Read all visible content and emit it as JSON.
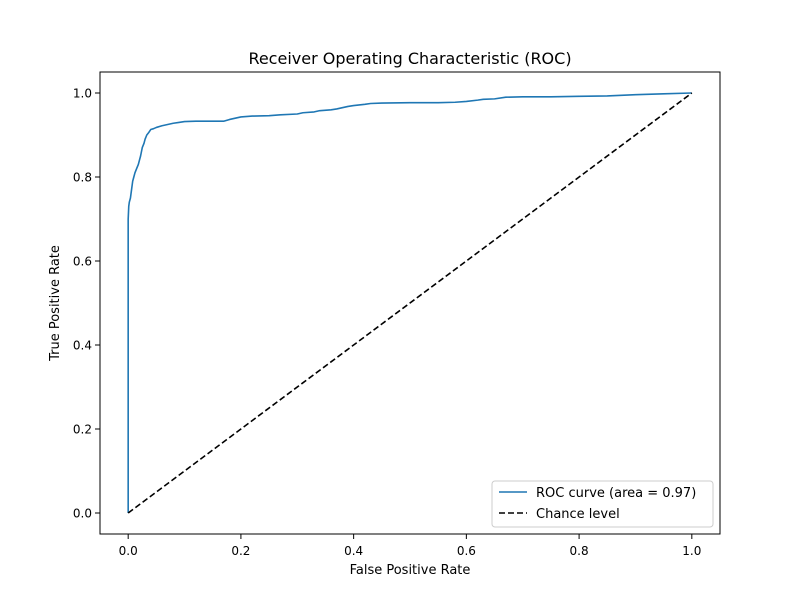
{
  "chart_data": {
    "type": "line",
    "title": "Receiver Operating Characteristic (ROC)",
    "xlabel": "False Positive Rate",
    "ylabel": "True Positive Rate",
    "xlim": [
      -0.05,
      1.05
    ],
    "ylim": [
      -0.05,
      1.05
    ],
    "xticks": [
      0.0,
      0.2,
      0.4,
      0.6,
      0.8,
      1.0
    ],
    "yticks": [
      0.0,
      0.2,
      0.4,
      0.6,
      0.8,
      1.0
    ],
    "xtick_labels": [
      "0.0",
      "0.2",
      "0.4",
      "0.6",
      "0.8",
      "1.0"
    ],
    "ytick_labels": [
      "0.0",
      "0.2",
      "0.4",
      "0.6",
      "0.8",
      "1.0"
    ],
    "grid": false,
    "legend_position": "lower-right",
    "series": [
      {
        "name": "ROC curve (area = 0.97)",
        "color": "#1f77b4",
        "style": "solid",
        "x": [
          0.0,
          0.0,
          0.0,
          0.001,
          0.002,
          0.004,
          0.006,
          0.008,
          0.01,
          0.012,
          0.015,
          0.018,
          0.02,
          0.022,
          0.025,
          0.028,
          0.03,
          0.033,
          0.036,
          0.04,
          0.045,
          0.05,
          0.06,
          0.07,
          0.08,
          0.09,
          0.1,
          0.12,
          0.14,
          0.17,
          0.18,
          0.19,
          0.2,
          0.22,
          0.25,
          0.27,
          0.3,
          0.31,
          0.33,
          0.34,
          0.36,
          0.37,
          0.38,
          0.39,
          0.4,
          0.42,
          0.43,
          0.45,
          0.5,
          0.55,
          0.58,
          0.6,
          0.62,
          0.63,
          0.65,
          0.67,
          0.7,
          0.75,
          0.8,
          0.85,
          0.9,
          0.95,
          1.0
        ],
        "y": [
          0.0,
          0.4,
          0.7,
          0.73,
          0.74,
          0.75,
          0.77,
          0.79,
          0.8,
          0.81,
          0.82,
          0.83,
          0.84,
          0.85,
          0.87,
          0.88,
          0.89,
          0.9,
          0.905,
          0.913,
          0.915,
          0.918,
          0.922,
          0.925,
          0.928,
          0.93,
          0.932,
          0.933,
          0.933,
          0.933,
          0.937,
          0.94,
          0.943,
          0.945,
          0.946,
          0.948,
          0.95,
          0.953,
          0.955,
          0.958,
          0.96,
          0.962,
          0.965,
          0.968,
          0.97,
          0.973,
          0.975,
          0.976,
          0.977,
          0.977,
          0.978,
          0.98,
          0.983,
          0.985,
          0.986,
          0.99,
          0.991,
          0.991,
          0.992,
          0.993,
          0.996,
          0.998,
          1.0
        ]
      },
      {
        "name": "Chance level",
        "color": "#000000",
        "style": "dashed",
        "x": [
          0.0,
          1.0
        ],
        "y": [
          0.0,
          1.0
        ]
      }
    ]
  }
}
